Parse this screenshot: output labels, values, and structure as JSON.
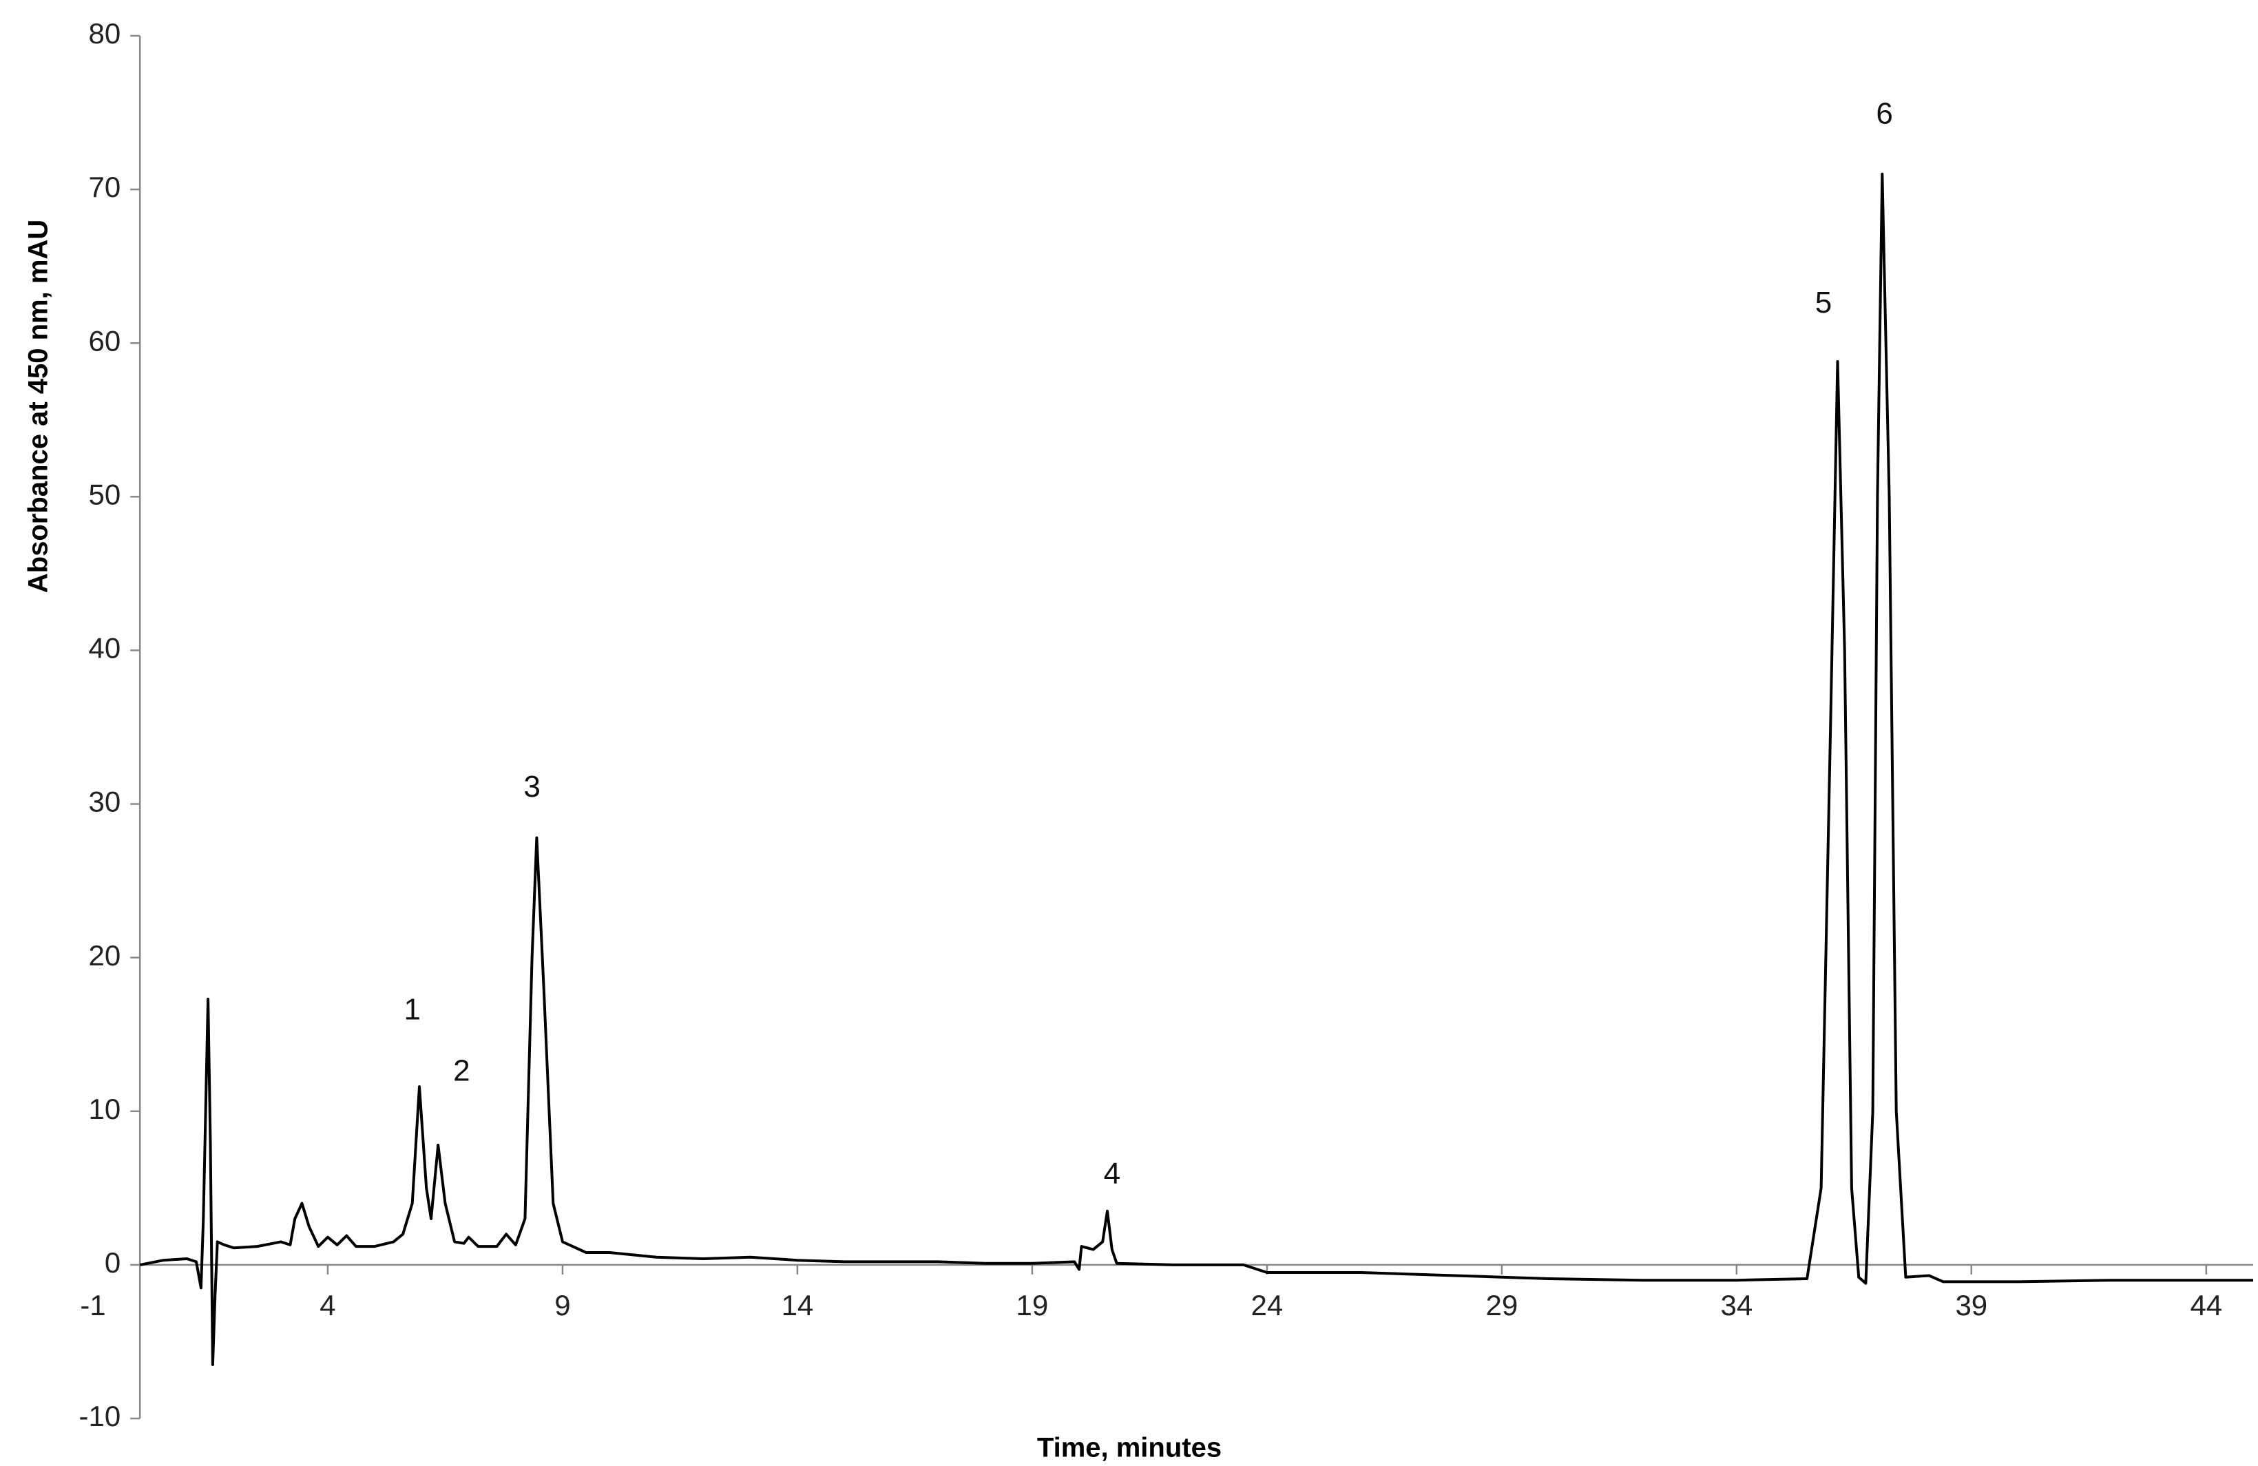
{
  "chart_data": {
    "type": "line",
    "x_label": "Time, minutes",
    "y_label": "Absorbance at 450 nm, mAU",
    "x": [
      0,
      0.5,
      1.0,
      1.2,
      1.3,
      1.35,
      1.45,
      1.5,
      1.55,
      1.6,
      1.65,
      1.8,
      2,
      2.5,
      3,
      3.2,
      3.3,
      3.45,
      3.6,
      3.8,
      4,
      4.2,
      4.4,
      4.6,
      5,
      5.4,
      5.6,
      5.8,
      5.95,
      6.1,
      6.2,
      6.35,
      6.5,
      6.7,
      6.9,
      7.0,
      7.2,
      7.6,
      7.8,
      8.0,
      8.2,
      8.35,
      8.45,
      8.6,
      8.8,
      9,
      9.5,
      10,
      11,
      12,
      13,
      14,
      15,
      16,
      17,
      18,
      19,
      19.9,
      20,
      20.05,
      20.3,
      20.5,
      20.6,
      20.7,
      20.8,
      22,
      23.5,
      24,
      26,
      28,
      29,
      30,
      32,
      34,
      35.5,
      35.8,
      36.0,
      36.15,
      36.3,
      36.45,
      36.6,
      36.75,
      36.9,
      37.0,
      37.1,
      37.25,
      37.4,
      37.6,
      38.1,
      38.4,
      40,
      42,
      45
    ],
    "series": [
      {
        "color": "#000000",
        "values": [
          0,
          0.3,
          0.4,
          0.2,
          -1.5,
          3,
          17.3,
          8,
          -6.5,
          -2,
          1.5,
          1.3,
          1.1,
          1.2,
          1.5,
          1.3,
          3,
          4,
          2.5,
          1.2,
          1.8,
          1.3,
          1.9,
          1.2,
          1.2,
          1.5,
          2,
          4,
          11.6,
          5,
          3,
          7.8,
          4,
          1.5,
          1.4,
          1.8,
          1.2,
          1.2,
          2,
          1.3,
          3,
          20,
          27.8,
          18,
          4,
          1.5,
          0.8,
          0.8,
          0.5,
          0.4,
          0.5,
          0.3,
          0.2,
          0.2,
          0.2,
          0.1,
          0.1,
          0.2,
          -0.3,
          1.2,
          1.0,
          1.5,
          3.5,
          1,
          0.1,
          0,
          0,
          -0.5,
          -0.5,
          -0.7,
          -0.8,
          -0.9,
          -1.0,
          -1,
          -0.9,
          5,
          35,
          58.8,
          40,
          5,
          -0.8,
          -1.2,
          10,
          50,
          71,
          50,
          10,
          -0.8,
          -0.7,
          -1.1,
          -1.1,
          -1.0,
          -1.0
        ]
      }
    ],
    "xlim": [
      -1,
      45
    ],
    "xticks": [
      -1,
      4,
      9,
      14,
      19,
      24,
      29,
      34,
      39,
      44
    ],
    "ylim": [
      -10,
      80
    ],
    "yticks": [
      -10,
      0,
      10,
      20,
      30,
      40,
      50,
      60,
      70,
      80
    ],
    "y_axis_at_x": 0,
    "annotations": [
      {
        "text": "1",
        "x": 5.8,
        "y": 16.5
      },
      {
        "text": "2",
        "x": 6.85,
        "y": 12.5
      },
      {
        "text": "3",
        "x": 8.35,
        "y": 31
      },
      {
        "text": "4",
        "x": 20.7,
        "y": 5.8
      },
      {
        "text": "5",
        "x": 35.85,
        "y": 62.5
      },
      {
        "text": "6",
        "x": 37.15,
        "y": 74.8
      }
    ]
  }
}
